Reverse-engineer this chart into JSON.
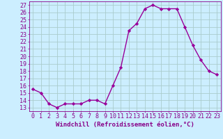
{
  "x": [
    0,
    1,
    2,
    3,
    4,
    5,
    6,
    7,
    8,
    9,
    10,
    11,
    12,
    13,
    14,
    15,
    16,
    17,
    18,
    19,
    20,
    21,
    22,
    23
  ],
  "y": [
    15.5,
    15.0,
    13.5,
    13.0,
    13.5,
    13.5,
    13.5,
    14.0,
    14.0,
    13.5,
    16.0,
    18.5,
    23.5,
    24.5,
    26.5,
    27.0,
    26.5,
    26.5,
    26.5,
    24.0,
    21.5,
    19.5,
    18.0,
    17.5
  ],
  "line_color": "#990099",
  "marker": "D",
  "marker_size": 2.2,
  "line_width": 1.0,
  "bg_color": "#cceeff",
  "grid_color": "#aacccc",
  "xlabel": "Windchill (Refroidissement éolien,°C)",
  "xlabel_fontsize": 6.5,
  "ylabel_ticks": [
    13,
    14,
    15,
    16,
    17,
    18,
    19,
    20,
    21,
    22,
    23,
    24,
    25,
    26,
    27
  ],
  "xlim": [
    -0.5,
    23.5
  ],
  "ylim": [
    12.5,
    27.5
  ],
  "tick_fontsize": 6.0,
  "tick_color": "#880088",
  "axis_color": "#880088"
}
